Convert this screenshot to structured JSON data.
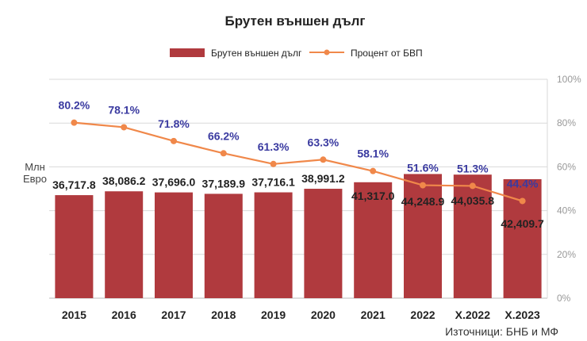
{
  "chart_data": {
    "type": "bar",
    "title": "Брутен външен дълг",
    "categories": [
      "2015",
      "2016",
      "2017",
      "2018",
      "2019",
      "2020",
      "2021",
      "2022",
      "X.2022",
      "X.2023"
    ],
    "bar_series": {
      "name": "Брутен външен дълг",
      "color": "#b03a3e",
      "values": [
        36717.8,
        38086.2,
        37696.0,
        37189.9,
        37716.1,
        38991.2,
        41317.0,
        44248.9,
        44035.8,
        42409.7
      ],
      "labels": [
        "36,717.8",
        "38,086.2",
        "37,696.0",
        "37,189.9",
        "37,716.1",
        "38,991.2",
        "41,317.0",
        "44,248.9",
        "44,035.8",
        "42,409.7"
      ]
    },
    "line_series": {
      "name": "Процент от БВП",
      "color": "#f0884a",
      "label_color": "#3a3aa0",
      "values": [
        80.2,
        78.1,
        71.8,
        66.2,
        61.3,
        63.3,
        58.1,
        51.6,
        51.3,
        44.4
      ],
      "labels": [
        "80.2%",
        "78.1%",
        "71.8%",
        "66.2%",
        "61.3%",
        "63.3%",
        "58.1%",
        "51.6%",
        "51.3%",
        "44.4%"
      ]
    },
    "y_right": {
      "ylim": [
        0,
        100
      ],
      "ticks": [
        "0%",
        "20%",
        "40%",
        "60%",
        "80%",
        "100%"
      ]
    },
    "y_left_unit": [
      "Млн",
      "Евро"
    ],
    "grid": true,
    "legend_placement": "top-center",
    "source": "Източници: БНБ и МФ"
  }
}
